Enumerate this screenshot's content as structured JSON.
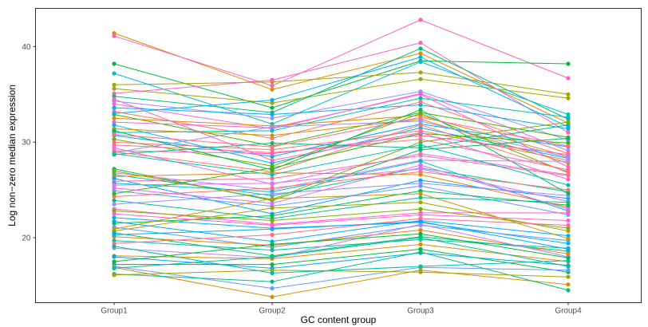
{
  "chart_data": {
    "type": "line",
    "title": "",
    "xlabel": "GC content group",
    "ylabel": "Log non−zero median expression",
    "categories": [
      "Group1",
      "Group2",
      "Group3",
      "Group4"
    ],
    "ylim": [
      13.2,
      44.0
    ],
    "yticks": [
      20,
      30,
      40
    ],
    "grid": false,
    "legend": "none",
    "markers": true,
    "series": [
      {
        "values": [
          41.4,
          35.5,
          39.3,
          32.0
        ],
        "color": "#D89000"
      },
      {
        "values": [
          41.1,
          35.9,
          42.8,
          36.7
        ],
        "color": "#FF62BC"
      },
      {
        "values": [
          38.2,
          33.6,
          38.5,
          38.2
        ],
        "color": "#00BA38"
      },
      {
        "values": [
          37.2,
          31.9,
          38.4,
          32.9
        ],
        "color": "#00BCD8"
      },
      {
        "values": [
          36.0,
          36.3,
          37.3,
          35.0
        ],
        "color": "#A3A500"
      },
      {
        "values": [
          35.6,
          34.1,
          36.6,
          34.6
        ],
        "color": "#A3A500"
      },
      {
        "values": [
          35.1,
          36.5,
          40.4,
          31.0
        ],
        "color": "#FF62BC"
      },
      {
        "values": [
          34.8,
          33.1,
          39.8,
          32.4
        ],
        "color": "#00BF7D"
      },
      {
        "values": [
          34.3,
          32.5,
          35.3,
          30.2
        ],
        "color": "#9590FF"
      },
      {
        "values": [
          34.0,
          31.4,
          35.1,
          29.1
        ],
        "color": "#E76BF3"
      },
      {
        "values": [
          33.6,
          32.9,
          33.9,
          31.4
        ],
        "color": "#00B0F6"
      },
      {
        "values": [
          33.2,
          30.4,
          34.2,
          28.8
        ],
        "color": "#F8766D"
      },
      {
        "values": [
          32.9,
          29.6,
          33.1,
          30.5
        ],
        "color": "#39B600"
      },
      {
        "values": [
          32.5,
          31.7,
          32.8,
          28.5
        ],
        "color": "#E58700"
      },
      {
        "values": [
          32.1,
          31.5,
          35.0,
          27.4
        ],
        "color": "#FD61D1"
      },
      {
        "values": [
          31.8,
          27.8,
          31.5,
          28.3
        ],
        "color": "#00B0F6"
      },
      {
        "values": [
          31.4,
          30.7,
          32.4,
          27.8
        ],
        "color": "#C99800"
      },
      {
        "values": [
          31.0,
          31.2,
          34.6,
          32.6
        ],
        "color": "#00C0AF"
      },
      {
        "values": [
          30.7,
          28.5,
          31.9,
          29.5
        ],
        "color": "#00A9FF"
      },
      {
        "values": [
          30.3,
          27.5,
          33.0,
          26.8
        ],
        "color": "#6BB100"
      },
      {
        "values": [
          30.0,
          29.2,
          31.2,
          28.1
        ],
        "color": "#F8766D"
      },
      {
        "values": [
          29.7,
          28.9,
          30.3,
          27.1
        ],
        "color": "#FF6C91"
      },
      {
        "values": [
          29.4,
          25.6,
          28.8,
          26.6
        ],
        "color": "#E76BF3"
      },
      {
        "values": [
          29.1,
          28.8,
          30.7,
          28.7
        ],
        "color": "#FF62BC"
      },
      {
        "values": [
          28.9,
          31.6,
          32.2,
          28.4
        ],
        "color": "#9590FF"
      },
      {
        "values": [
          28.7,
          29.9,
          29.4,
          31.8
        ],
        "color": "#00BF7D"
      },
      {
        "values": [
          27.2,
          23.9,
          29.2,
          30.4
        ],
        "color": "#00BD5C"
      },
      {
        "values": [
          26.8,
          25.0,
          28.1,
          28.0
        ],
        "color": "#B983FF"
      },
      {
        "values": [
          26.6,
          24.4,
          27.3,
          24.8
        ],
        "color": "#00C1A3"
      },
      {
        "values": [
          26.4,
          26.8,
          26.6,
          23.2
        ],
        "color": "#E58700"
      },
      {
        "values": [
          26.2,
          22.5,
          26.0,
          24.1
        ],
        "color": "#00A5FF"
      },
      {
        "values": [
          25.9,
          26.2,
          28.6,
          26.5
        ],
        "color": "#FF6C91"
      },
      {
        "values": [
          25.7,
          24.8,
          28.0,
          22.8
        ],
        "color": "#00BBDB"
      },
      {
        "values": [
          25.5,
          25.7,
          27.2,
          23.8
        ],
        "color": "#DC71FA"
      },
      {
        "values": [
          24.9,
          23.3,
          25.4,
          22.4
        ],
        "color": "#619CFF"
      },
      {
        "values": [
          24.3,
          25.2,
          26.9,
          25.0
        ],
        "color": "#F8766D"
      },
      {
        "values": [
          23.9,
          22.0,
          24.2,
          23.7
        ],
        "color": "#00C08B"
      },
      {
        "values": [
          23.5,
          24.6,
          25.7,
          24.4
        ],
        "color": "#9590FF"
      },
      {
        "values": [
          23.0,
          21.4,
          22.6,
          22.6
        ],
        "color": "#FF61C3"
      },
      {
        "values": [
          22.8,
          21.8,
          23.0,
          21.0
        ],
        "color": "#7CAE00"
      },
      {
        "values": [
          22.1,
          21.0,
          21.6,
          19.4
        ],
        "color": "#00B0F6"
      },
      {
        "values": [
          21.7,
          19.6,
          21.8,
          20.2
        ],
        "color": "#00A9FF"
      },
      {
        "values": [
          21.5,
          22.3,
          24.9,
          23.4
        ],
        "color": "#00BD5C"
      },
      {
        "values": [
          21.1,
          19.0,
          21.3,
          19.7
        ],
        "color": "#529EFF"
      },
      {
        "values": [
          20.7,
          23.1,
          23.7,
          20.7
        ],
        "color": "#A3A500"
      },
      {
        "values": [
          20.5,
          18.1,
          20.1,
          18.6
        ],
        "color": "#00BF7D"
      },
      {
        "values": [
          20.1,
          19.2,
          20.8,
          18.3
        ],
        "color": "#E58700"
      },
      {
        "values": [
          19.7,
          18.7,
          19.8,
          18.9
        ],
        "color": "#00C19A"
      },
      {
        "values": [
          19.4,
          20.3,
          22.0,
          21.3
        ],
        "color": "#FF6C91"
      },
      {
        "values": [
          18.9,
          17.9,
          21.4,
          18.0
        ],
        "color": "#B983FF"
      },
      {
        "values": [
          18.1,
          17.8,
          19.3,
          17.5
        ],
        "color": "#D89000"
      },
      {
        "values": [
          18.0,
          16.8,
          18.4,
          17.1
        ],
        "color": "#00A5FF"
      },
      {
        "values": [
          17.2,
          17.2,
          18.8,
          16.4
        ],
        "color": "#00BA38"
      },
      {
        "values": [
          17.0,
          14.7,
          16.9,
          16.6
        ],
        "color": "#619CFF"
      },
      {
        "values": [
          16.9,
          13.8,
          16.6,
          15.1
        ],
        "color": "#D89000"
      },
      {
        "values": [
          16.2,
          15.4,
          18.5,
          14.5
        ],
        "color": "#00BF7D"
      },
      {
        "values": [
          16.1,
          16.6,
          16.4,
          15.9
        ],
        "color": "#A3A500"
      },
      {
        "values": [
          16.8,
          18.0,
          20.0,
          17.0
        ],
        "color": "#00C08B"
      },
      {
        "values": [
          27.0,
          24.0,
          30.0,
          32.1
        ],
        "color": "#7CAE00"
      },
      {
        "values": [
          29.0,
          26.9,
          31.8,
          26.9
        ],
        "color": "#F8766D"
      },
      {
        "values": [
          31.2,
          27.1,
          33.4,
          24.6
        ],
        "color": "#00BD5C"
      },
      {
        "values": [
          24.6,
          27.3,
          30.9,
          29.9
        ],
        "color": "#39B600"
      },
      {
        "values": [
          20.9,
          24.1,
          24.6,
          19.9
        ],
        "color": "#C99800"
      },
      {
        "values": [
          19.1,
          16.3,
          17.0,
          17.6
        ],
        "color": "#00C1A3"
      },
      {
        "values": [
          28.8,
          26.6,
          29.7,
          25.5
        ],
        "color": "#00C0AF"
      },
      {
        "values": [
          34.5,
          28.1,
          31.0,
          26.1
        ],
        "color": "#FF61C3"
      },
      {
        "values": [
          22.5,
          21.3,
          22.4,
          21.8
        ],
        "color": "#FD61D1"
      },
      {
        "values": [
          25.2,
          23.6,
          27.6,
          23.0
        ],
        "color": "#E76BF3"
      },
      {
        "values": [
          30.8,
          29.5,
          32.6,
          29.6
        ],
        "color": "#FF6C91"
      },
      {
        "values": [
          33.0,
          34.4,
          38.9,
          31.6
        ],
        "color": "#00B0F6"
      },
      {
        "values": [
          20.3,
          20.9,
          21.7,
          18.8
        ],
        "color": "#00A9FF"
      },
      {
        "values": [
          17.5,
          19.3,
          20.4,
          17.9
        ],
        "color": "#00BA38"
      }
    ]
  }
}
